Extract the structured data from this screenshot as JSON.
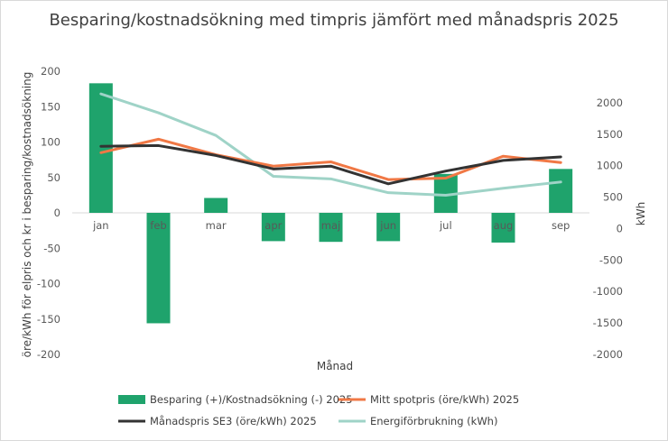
{
  "chart_data": {
    "type": "bar+line",
    "title": "Besparing/kostnadsökning med timpris jämfört med månadspris 2025",
    "xlabel": "Månad",
    "ylabel_left": "öre/kWh för elpris och kr  i besparing/kostnadsökning",
    "ylabel_right": "kWh",
    "categories": [
      "jan",
      "feb",
      "mar",
      "apr",
      "maj",
      "jun",
      "jul",
      "aug",
      "sep"
    ],
    "ylim_left": [
      -200,
      200
    ],
    "yticks_left": [
      "200",
      "150",
      "100",
      "50",
      "0",
      "-50",
      "-100",
      "-150",
      "-200"
    ],
    "ylim_right": [
      -2000,
      2500
    ],
    "yticks_right": [
      "2000",
      "1500",
      "1000",
      "500",
      "0",
      "-500",
      "-1000",
      "-1500",
      "-2000"
    ],
    "series": [
      {
        "name": "Besparing (+)/Kostnadsökning (-) 2025",
        "type": "bar",
        "axis": "left",
        "color": "#1fa36c",
        "values": [
          183,
          -156,
          21,
          -40,
          -41,
          -40,
          55,
          -42,
          62
        ]
      },
      {
        "name": "Mitt spotpris (öre/kWh) 2025",
        "type": "line",
        "axis": "left",
        "color": "#f07845",
        "values": [
          85,
          104,
          82,
          66,
          72,
          47,
          49,
          80,
          71
        ]
      },
      {
        "name": "Månadspris SE3 (öre/kWh) 2025",
        "type": "line",
        "axis": "left",
        "color": "#333333",
        "values": [
          94,
          95,
          81,
          62,
          66,
          41,
          59,
          74,
          79
        ]
      },
      {
        "name": "Energiförbrukning (kWh)",
        "type": "line",
        "axis": "right",
        "color": "#9fd3c7",
        "values": [
          2140,
          1840,
          1480,
          830,
          790,
          570,
          530,
          640,
          740
        ]
      }
    ],
    "legend_position": "bottom"
  }
}
